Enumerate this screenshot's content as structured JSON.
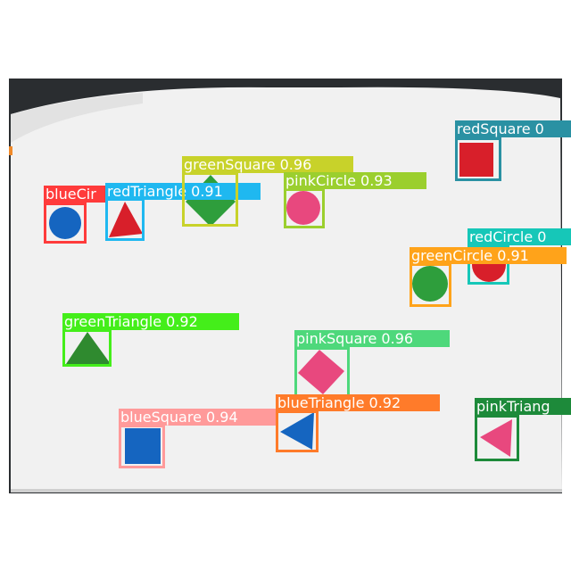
{
  "image": {
    "description_free": true,
    "colors": {
      "background": "#ffffff",
      "board": "#f1f1f1",
      "board_edge": "#dcdcdc",
      "surround": "#2a2d30"
    }
  },
  "detections": [
    {
      "id": "blueCircle",
      "label": "blueCir",
      "color": "#ff3b3b",
      "shape": "circle",
      "fill": "#1565c0"
    },
    {
      "id": "redTriangle",
      "label": "redTriangle 0.91",
      "color": "#1fb8f0",
      "shape": "triangle",
      "fill": "#d81f2a"
    },
    {
      "id": "greenSquare",
      "label": "greenSquare 0.96",
      "color": "#c8d22a",
      "shape": "diamond",
      "fill": "#2e9e3c"
    },
    {
      "id": "pinkCircle",
      "label": "pinkCircle 0.93",
      "color": "#9bcf2e",
      "shape": "circle",
      "fill": "#e8487e"
    },
    {
      "id": "redSquare",
      "label": "redSquare 0",
      "color": "#2a91a3",
      "shape": "square",
      "fill": "#d81f2a"
    },
    {
      "id": "redCircle",
      "label": "redCircle 0",
      "color": "#16c7b8",
      "shape": "circle",
      "fill": "#d81f2a"
    },
    {
      "id": "greenCircle",
      "label": "greenCircle 0.91",
      "color": "#ffa31a",
      "shape": "circle",
      "fill": "#2e9e3c"
    },
    {
      "id": "greenTriangle",
      "label": "greenTriangle 0.92",
      "color": "#44ee1a",
      "shape": "triangle",
      "fill": "#2f8a2f"
    },
    {
      "id": "pinkSquare",
      "label": "pinkSquare 0.96",
      "color": "#4ed87b",
      "shape": "diamond",
      "fill": "#e8487e"
    },
    {
      "id": "blueTriangle",
      "label": "blueTriangle 0.92",
      "color": "#ff7b2a",
      "shape": "triangle-left",
      "fill": "#1565c0"
    },
    {
      "id": "blueSquare",
      "label": "blueSquare 0.94",
      "color": "#ff9a9a",
      "shape": "square",
      "fill": "#1565c0"
    },
    {
      "id": "pinkTriangle",
      "label": "pinkTriang",
      "color": "#1d8a3a",
      "shape": "triangle-left",
      "fill": "#e8487e"
    }
  ]
}
